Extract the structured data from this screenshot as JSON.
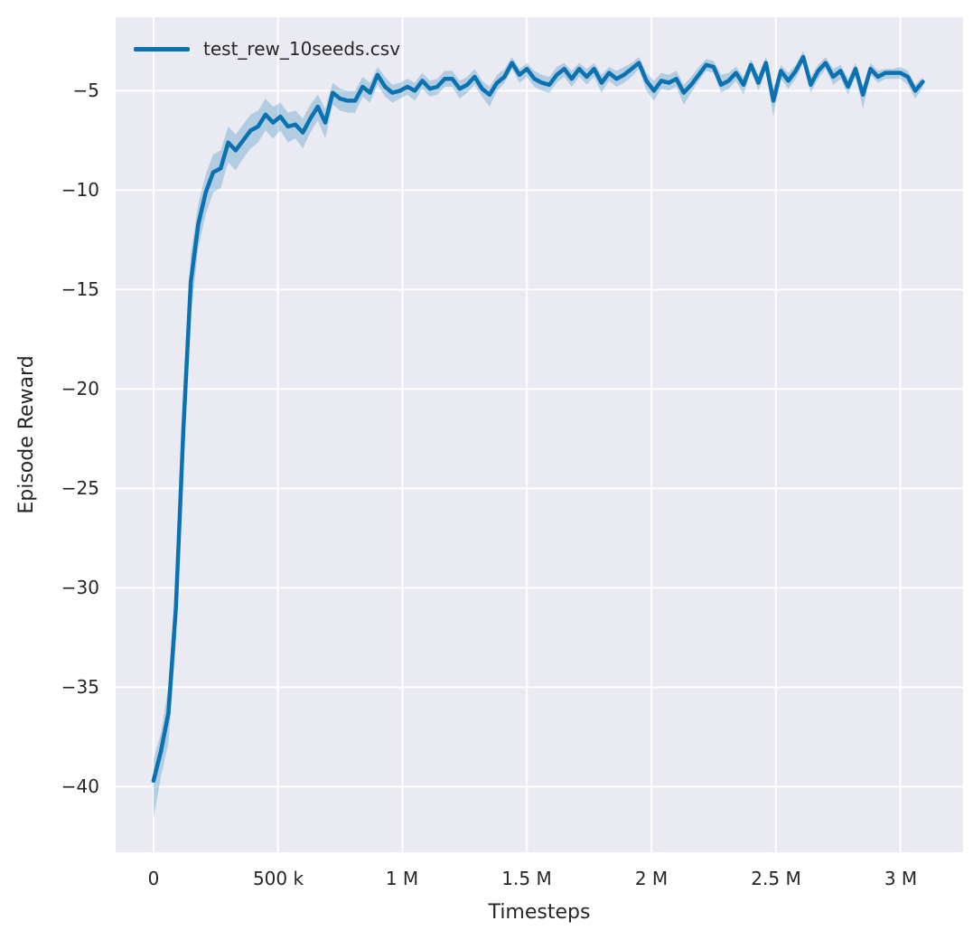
{
  "figure": {
    "background": "#ffffff",
    "axes_background": "#eaeaf2",
    "grid_color": "#ffffff",
    "text_color": "#262626",
    "line_color": "#0b72b2",
    "band_color": "#0b72b2",
    "band_opacity": 0.25
  },
  "chart_data": {
    "type": "line",
    "title": "",
    "xlabel": "Timesteps",
    "ylabel": "Episode Reward",
    "grid": true,
    "legend": {
      "position": "upper-left",
      "entries": [
        {
          "label": "test_rew_10seeds.csv",
          "color": "#0b72b2"
        }
      ]
    },
    "xlim": [
      -152000,
      3252000
    ],
    "ylim": [
      -43.3,
      -1.3
    ],
    "xticks": {
      "values": [
        0,
        500000,
        1000000,
        1500000,
        2000000,
        2500000,
        3000000
      ],
      "labels": [
        "0",
        "500 k",
        "1 M",
        "1.5 M",
        "2 M",
        "2.5 M",
        "3 M"
      ]
    },
    "yticks": {
      "values": [
        -5,
        -10,
        -15,
        -20,
        -25,
        -30,
        -35,
        -40
      ],
      "labels": [
        "−5",
        "−10",
        "−15",
        "−20",
        "−25",
        "−30",
        "−35",
        "−40"
      ]
    },
    "series": [
      {
        "name": "test_rew_10seeds.csv",
        "color": "#0b72b2",
        "band_opacity": 0.25,
        "x": [
          0,
          30000,
          60000,
          90000,
          120000,
          150000,
          180000,
          210000,
          240000,
          270000,
          300000,
          330000,
          360000,
          390000,
          420000,
          450000,
          480000,
          510000,
          540000,
          570000,
          600000,
          630000,
          660000,
          690000,
          720000,
          750000,
          780000,
          810000,
          840000,
          870000,
          900000,
          930000,
          960000,
          990000,
          1020000,
          1050000,
          1080000,
          1110000,
          1140000,
          1170000,
          1200000,
          1230000,
          1260000,
          1290000,
          1320000,
          1350000,
          1380000,
          1410000,
          1440000,
          1470000,
          1500000,
          1530000,
          1560000,
          1590000,
          1620000,
          1650000,
          1680000,
          1710000,
          1740000,
          1770000,
          1800000,
          1830000,
          1860000,
          1890000,
          1920000,
          1950000,
          1980000,
          2010000,
          2040000,
          2070000,
          2100000,
          2130000,
          2160000,
          2190000,
          2220000,
          2250000,
          2280000,
          2310000,
          2340000,
          2370000,
          2400000,
          2430000,
          2460000,
          2490000,
          2520000,
          2550000,
          2580000,
          2610000,
          2640000,
          2670000,
          2700000,
          2730000,
          2760000,
          2790000,
          2820000,
          2850000,
          2880000,
          2910000,
          2940000,
          2970000,
          3000000,
          3030000,
          3060000,
          3090000
        ],
        "y": [
          -39.7,
          -38.2,
          -36.3,
          -31.0,
          -22.0,
          -14.6,
          -11.7,
          -10.1,
          -9.1,
          -8.9,
          -7.6,
          -8.0,
          -7.5,
          -7.0,
          -6.8,
          -6.2,
          -6.6,
          -6.3,
          -6.8,
          -6.7,
          -7.1,
          -6.4,
          -5.8,
          -6.6,
          -5.1,
          -5.4,
          -5.5,
          -5.5,
          -4.8,
          -5.1,
          -4.2,
          -4.8,
          -5.1,
          -5.0,
          -4.8,
          -5.0,
          -4.5,
          -4.9,
          -4.8,
          -4.4,
          -4.4,
          -4.9,
          -4.7,
          -4.3,
          -4.9,
          -5.2,
          -4.6,
          -4.3,
          -3.6,
          -4.2,
          -3.9,
          -4.4,
          -4.6,
          -4.7,
          -4.2,
          -3.9,
          -4.4,
          -3.9,
          -4.3,
          -3.9,
          -4.6,
          -4.1,
          -4.4,
          -4.2,
          -3.9,
          -3.6,
          -4.5,
          -5.0,
          -4.5,
          -4.6,
          -4.4,
          -5.1,
          -4.7,
          -4.2,
          -3.7,
          -3.8,
          -4.7,
          -4.5,
          -4.1,
          -4.7,
          -3.7,
          -4.6,
          -3.6,
          -5.5,
          -4.0,
          -4.5,
          -4.0,
          -3.3,
          -4.7,
          -4.0,
          -3.6,
          -4.3,
          -4.0,
          -4.8,
          -3.9,
          -5.2,
          -3.9,
          -4.3,
          -4.1,
          -4.1,
          -4.1,
          -4.3,
          -5.0,
          -4.55
        ],
        "band_low": [
          -41.6,
          -39.5,
          -37.8,
          -32.8,
          -24.0,
          -16.3,
          -12.9,
          -11.2,
          -10.1,
          -9.9,
          -8.6,
          -9.0,
          -8.4,
          -7.9,
          -7.6,
          -7.0,
          -7.4,
          -7.0,
          -7.6,
          -7.4,
          -7.9,
          -7.1,
          -6.5,
          -7.4,
          -5.7,
          -6.0,
          -6.1,
          -6.1,
          -5.3,
          -5.6,
          -4.7,
          -5.3,
          -5.6,
          -5.4,
          -5.2,
          -5.5,
          -4.9,
          -5.3,
          -5.2,
          -4.8,
          -4.8,
          -5.4,
          -5.1,
          -4.7,
          -5.3,
          -5.8,
          -5.0,
          -4.6,
          -3.9,
          -4.6,
          -4.3,
          -4.8,
          -5.0,
          -5.1,
          -4.6,
          -4.3,
          -4.8,
          -4.3,
          -4.7,
          -4.3,
          -5.1,
          -4.5,
          -4.8,
          -4.6,
          -4.3,
          -3.9,
          -5.0,
          -5.5,
          -4.9,
          -5.0,
          -4.8,
          -5.7,
          -5.1,
          -4.5,
          -4.0,
          -4.1,
          -5.1,
          -4.9,
          -4.5,
          -5.2,
          -4.0,
          -5.0,
          -3.9,
          -6.3,
          -4.4,
          -4.9,
          -4.4,
          -3.6,
          -5.1,
          -4.4,
          -3.9,
          -4.7,
          -4.4,
          -5.2,
          -4.3,
          -5.9,
          -4.2,
          -4.6,
          -4.4,
          -4.4,
          -4.4,
          -4.7,
          -5.4,
          -4.85
        ],
        "band_high": [
          -38.6,
          -37.3,
          -35.0,
          -29.4,
          -20.2,
          -13.2,
          -10.7,
          -9.2,
          -8.2,
          -8.0,
          -6.8,
          -7.2,
          -6.7,
          -6.2,
          -6.0,
          -5.4,
          -5.8,
          -5.6,
          -6.1,
          -6.0,
          -6.4,
          -5.7,
          -5.2,
          -5.9,
          -4.6,
          -4.9,
          -5.0,
          -5.0,
          -4.3,
          -4.6,
          -3.8,
          -4.3,
          -4.7,
          -4.6,
          -4.4,
          -4.6,
          -4.1,
          -4.5,
          -4.4,
          -4.0,
          -4.0,
          -4.5,
          -4.3,
          -3.9,
          -4.5,
          -4.8,
          -4.2,
          -3.9,
          -3.3,
          -3.9,
          -3.6,
          -4.0,
          -4.2,
          -4.3,
          -3.8,
          -3.6,
          -4.0,
          -3.6,
          -3.9,
          -3.6,
          -4.2,
          -3.8,
          -4.0,
          -3.8,
          -3.6,
          -3.3,
          -4.1,
          -4.5,
          -4.1,
          -4.2,
          -4.0,
          -4.7,
          -4.3,
          -3.8,
          -3.4,
          -3.5,
          -4.2,
          -4.1,
          -3.8,
          -4.3,
          -3.4,
          -4.2,
          -3.3,
          -4.9,
          -3.7,
          -4.1,
          -3.7,
          -3.0,
          -4.3,
          -3.7,
          -3.3,
          -3.9,
          -3.7,
          -4.4,
          -3.6,
          -4.8,
          -3.6,
          -4.0,
          -3.9,
          -3.9,
          -3.8,
          -4.0,
          -4.7,
          -4.3
        ]
      }
    ]
  }
}
